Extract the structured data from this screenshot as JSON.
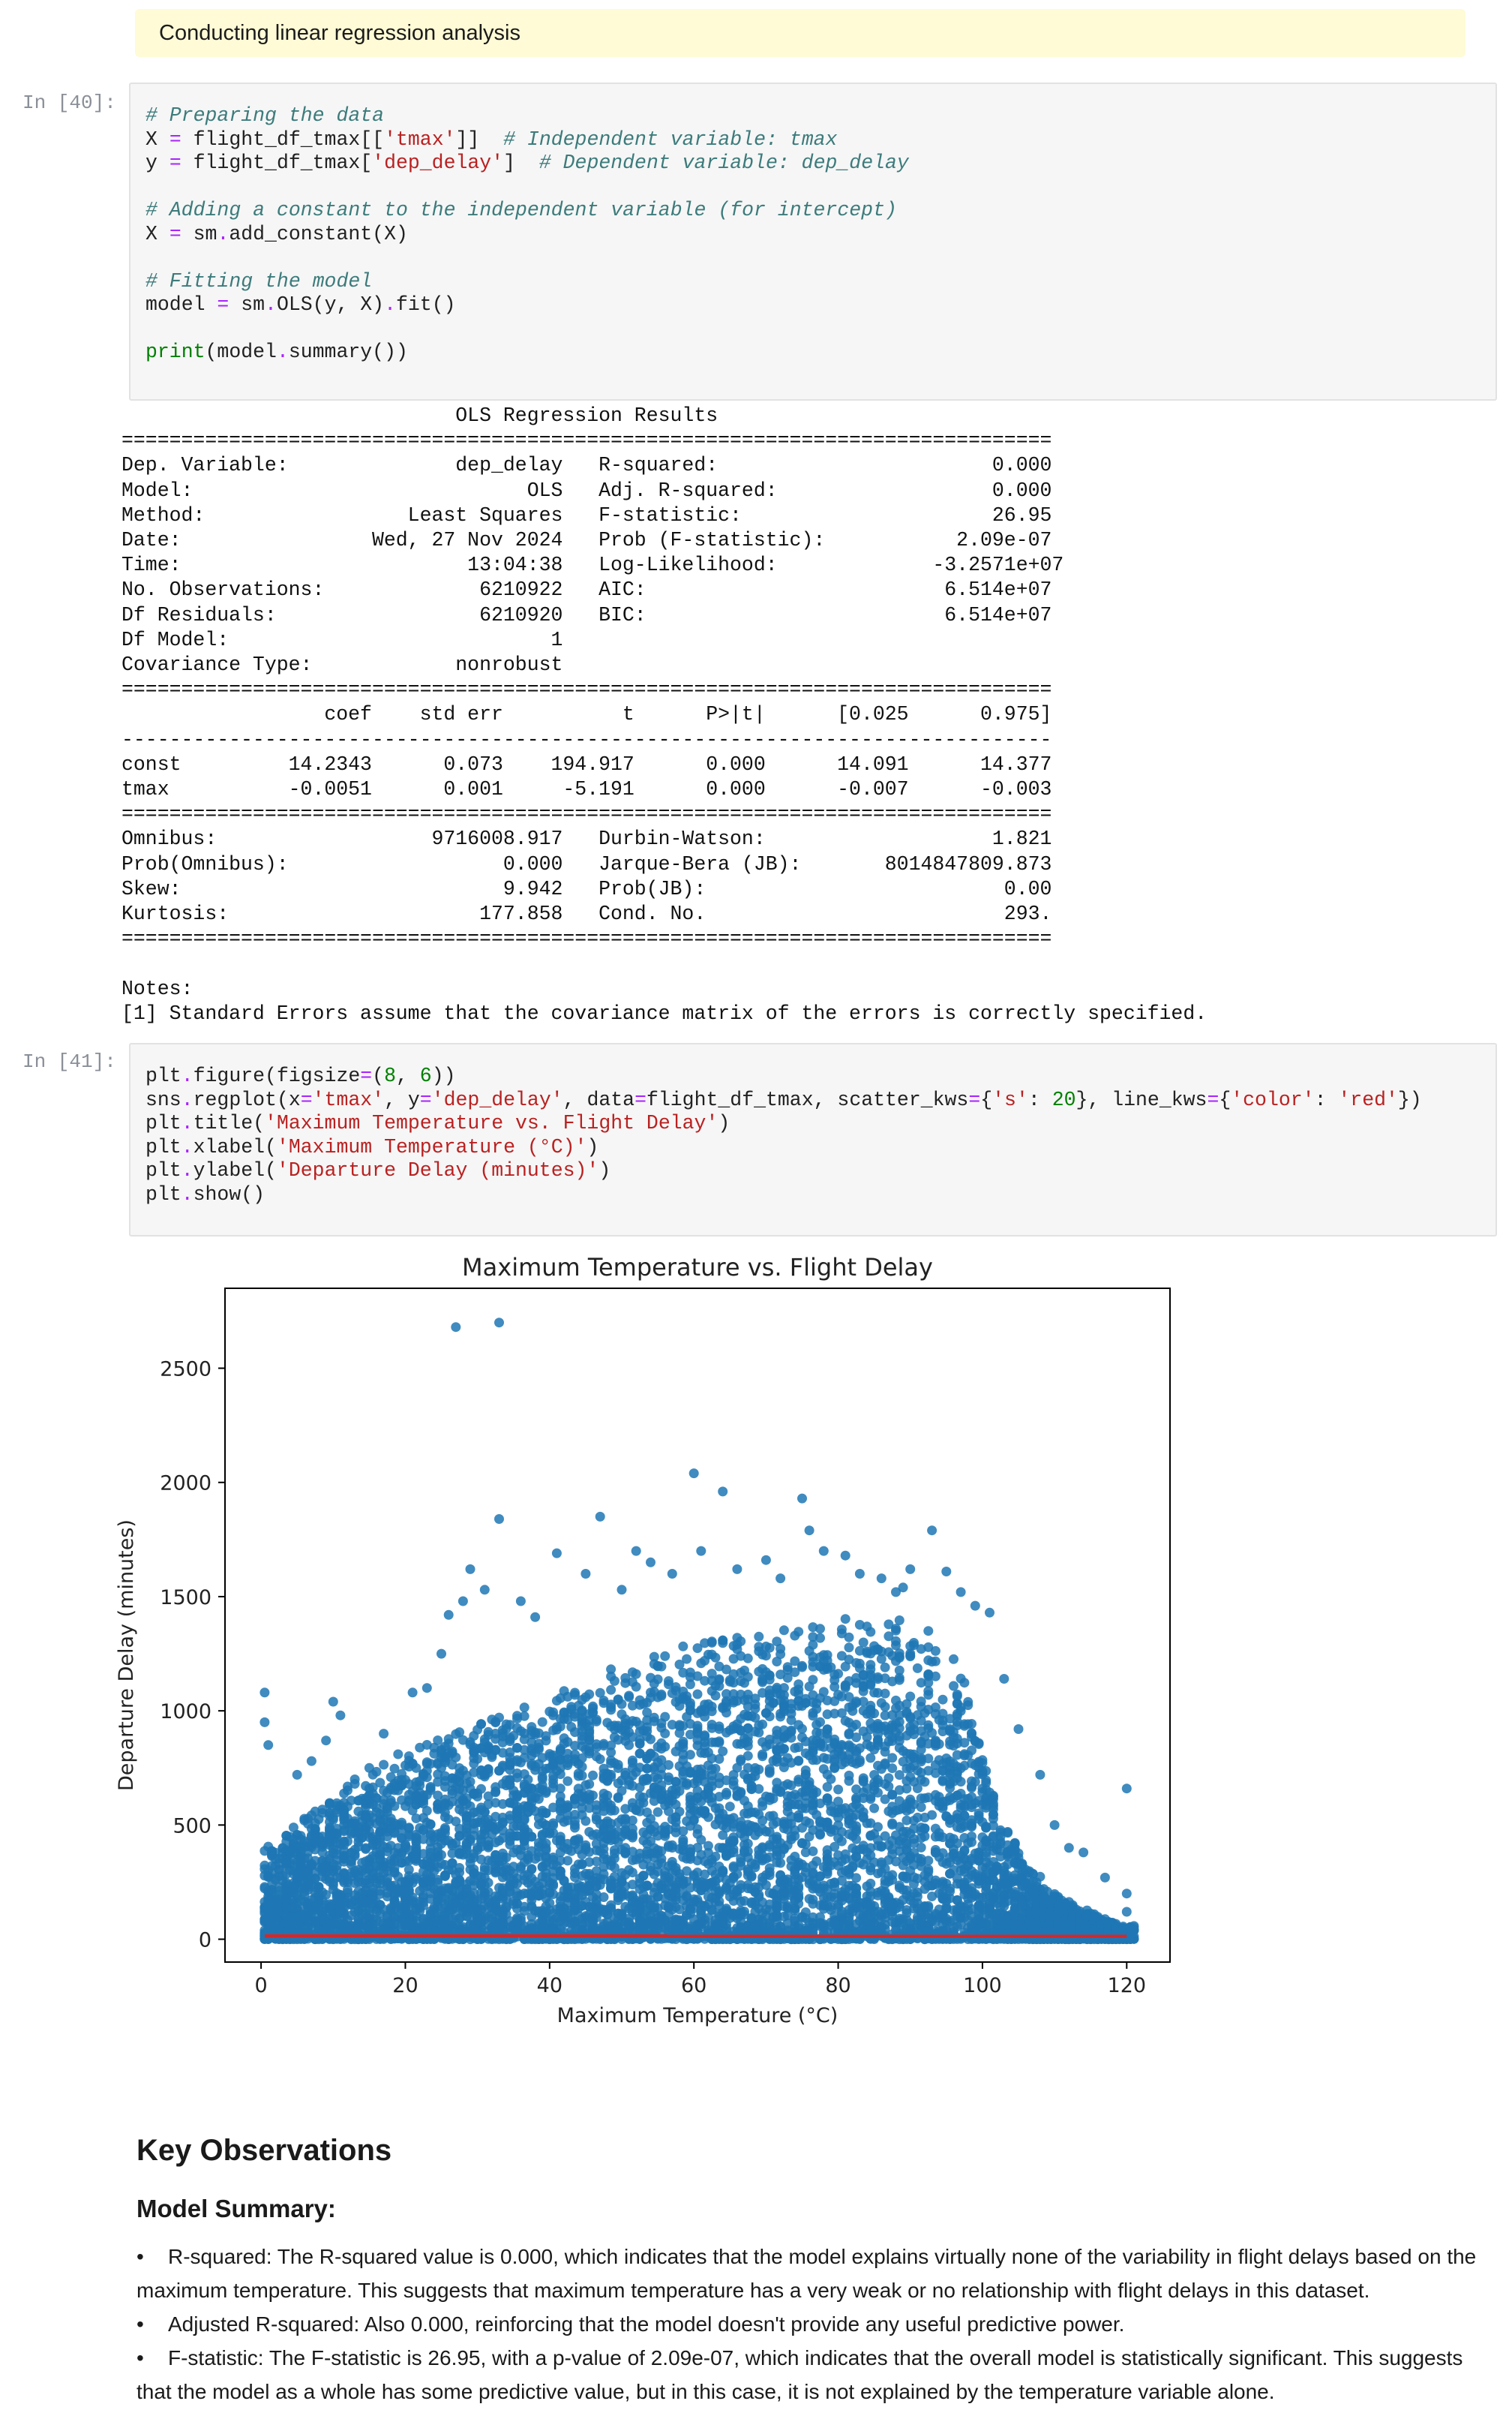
{
  "banner": {
    "text": "Conducting linear regression analysis"
  },
  "cell40": {
    "prompt": "In [40]:",
    "lines": [
      [
        {
          "t": "# Preparing the data",
          "c": "cm"
        }
      ],
      [
        {
          "t": "X "
        },
        {
          "t": "=",
          "c": "op"
        },
        {
          "t": " flight_df_tmax[["
        },
        {
          "t": "'tmax'",
          "c": "st"
        },
        {
          "t": "]]  "
        },
        {
          "t": "# Independent variable: tmax",
          "c": "cm"
        }
      ],
      [
        {
          "t": "y "
        },
        {
          "t": "=",
          "c": "op"
        },
        {
          "t": " flight_df_tmax["
        },
        {
          "t": "'dep_delay'",
          "c": "st"
        },
        {
          "t": "]  "
        },
        {
          "t": "# Dependent variable: dep_delay",
          "c": "cm"
        }
      ],
      [
        {
          "t": ""
        }
      ],
      [
        {
          "t": "# Adding a constant to the independent variable (for intercept)",
          "c": "cm"
        }
      ],
      [
        {
          "t": "X "
        },
        {
          "t": "=",
          "c": "op"
        },
        {
          "t": " sm"
        },
        {
          "t": ".",
          "c": "op"
        },
        {
          "t": "add_constant(X)"
        }
      ],
      [
        {
          "t": ""
        }
      ],
      [
        {
          "t": "# Fitting the model",
          "c": "cm"
        }
      ],
      [
        {
          "t": "model "
        },
        {
          "t": "=",
          "c": "op"
        },
        {
          "t": " sm"
        },
        {
          "t": ".",
          "c": "op"
        },
        {
          "t": "OLS(y, X)"
        },
        {
          "t": ".",
          "c": "op"
        },
        {
          "t": "fit()"
        }
      ],
      [
        {
          "t": ""
        }
      ],
      [
        {
          "t": "print",
          "c": "nm"
        },
        {
          "t": "(model"
        },
        {
          "t": ".",
          "c": "op"
        },
        {
          "t": "summary())"
        }
      ]
    ]
  },
  "ols_output": "                            OLS Regression Results                            \n==============================================================================\nDep. Variable:              dep_delay   R-squared:                       0.000\nModel:                            OLS   Adj. R-squared:                  0.000\nMethod:                 Least Squares   F-statistic:                     26.95\nDate:                Wed, 27 Nov 2024   Prob (F-statistic):           2.09e-07\nTime:                        13:04:38   Log-Likelihood:             -3.2571e+07\nNo. Observations:             6210922   AIC:                         6.514e+07\nDf Residuals:                 6210920   BIC:                         6.514e+07\nDf Model:                           1                                         \nCovariance Type:            nonrobust                                         \n==============================================================================\n                 coef    std err          t      P>|t|      [0.025      0.975]\n------------------------------------------------------------------------------\nconst         14.2343      0.073    194.917      0.000      14.091      14.377\ntmax          -0.0051      0.001     -5.191      0.000      -0.007      -0.003\n==============================================================================\nOmnibus:                  9716008.917   Durbin-Watson:                   1.821\nProb(Omnibus):                  0.000   Jarque-Bera (JB):       8014847809.873\nSkew:                           9.942   Prob(JB):                         0.00\nKurtosis:                     177.858   Cond. No.                         293.\n==============================================================================\n\nNotes:\n[1] Standard Errors assume that the covariance matrix of the errors is correctly specified.",
  "cell41": {
    "prompt": "In [41]:",
    "lines": [
      [
        {
          "t": "plt"
        },
        {
          "t": ".",
          "c": "op"
        },
        {
          "t": "figure(figsize"
        },
        {
          "t": "=",
          "c": "op"
        },
        {
          "t": "("
        },
        {
          "t": "8",
          "c": "nm"
        },
        {
          "t": ", "
        },
        {
          "t": "6",
          "c": "nm"
        },
        {
          "t": "))"
        }
      ],
      [
        {
          "t": "sns"
        },
        {
          "t": ".",
          "c": "op"
        },
        {
          "t": "regplot(x"
        },
        {
          "t": "=",
          "c": "op"
        },
        {
          "t": "'tmax'",
          "c": "st"
        },
        {
          "t": ", y"
        },
        {
          "t": "=",
          "c": "op"
        },
        {
          "t": "'dep_delay'",
          "c": "st"
        },
        {
          "t": ", data"
        },
        {
          "t": "=",
          "c": "op"
        },
        {
          "t": "flight_df_tmax, scatter_kws"
        },
        {
          "t": "=",
          "c": "op"
        },
        {
          "t": "{"
        },
        {
          "t": "'s'",
          "c": "st"
        },
        {
          "t": ": "
        },
        {
          "t": "20",
          "c": "nm"
        },
        {
          "t": "}, line_kws"
        },
        {
          "t": "=",
          "c": "op"
        },
        {
          "t": "{"
        },
        {
          "t": "'color'",
          "c": "st"
        },
        {
          "t": ": "
        },
        {
          "t": "'red'",
          "c": "st"
        },
        {
          "t": "})"
        }
      ],
      [
        {
          "t": "plt"
        },
        {
          "t": ".",
          "c": "op"
        },
        {
          "t": "title("
        },
        {
          "t": "'Maximum Temperature vs. Flight Delay'",
          "c": "st"
        },
        {
          "t": ")"
        }
      ],
      [
        {
          "t": "plt"
        },
        {
          "t": ".",
          "c": "op"
        },
        {
          "t": "xlabel("
        },
        {
          "t": "'Maximum Temperature (°C)'",
          "c": "st"
        },
        {
          "t": ")"
        }
      ],
      [
        {
          "t": "plt"
        },
        {
          "t": ".",
          "c": "op"
        },
        {
          "t": "ylabel("
        },
        {
          "t": "'Departure Delay (minutes)'",
          "c": "st"
        },
        {
          "t": ")"
        }
      ],
      [
        {
          "t": "plt"
        },
        {
          "t": ".",
          "c": "op"
        },
        {
          "t": "show()"
        }
      ]
    ]
  },
  "chart_data": {
    "type": "scatter",
    "title": "Maximum Temperature vs. Flight Delay",
    "xlabel": "Maximum Temperature (°C)",
    "ylabel": "Departure Delay (minutes)",
    "xlim": [
      -5,
      126
    ],
    "ylim": [
      -100,
      2850
    ],
    "x_ticks": [
      0,
      20,
      40,
      60,
      80,
      100,
      120
    ],
    "y_ticks": [
      0,
      500,
      1000,
      1500,
      2000,
      2500
    ],
    "point_color": "#1f77b4",
    "line_color": "#d62728",
    "envelope_upper": [
      [
        0,
        400
      ],
      [
        5,
        500
      ],
      [
        10,
        650
      ],
      [
        15,
        750
      ],
      [
        20,
        800
      ],
      [
        25,
        900
      ],
      [
        30,
        950
      ],
      [
        35,
        1000
      ],
      [
        40,
        1050
      ],
      [
        45,
        1150
      ],
      [
        50,
        1200
      ],
      [
        55,
        1250
      ],
      [
        60,
        1300
      ],
      [
        65,
        1320
      ],
      [
        70,
        1350
      ],
      [
        75,
        1370
      ],
      [
        80,
        1400
      ],
      [
        85,
        1420
      ],
      [
        88,
        1400
      ],
      [
        92,
        1380
      ],
      [
        95,
        1300
      ],
      [
        98,
        1100
      ],
      [
        100,
        800
      ],
      [
        103,
        500
      ],
      [
        106,
        350
      ],
      [
        110,
        200
      ],
      [
        115,
        120
      ],
      [
        119,
        60
      ]
    ],
    "outliers": [
      [
        0.5,
        1080
      ],
      [
        0.5,
        950
      ],
      [
        1,
        850
      ],
      [
        3,
        400
      ],
      [
        5,
        720
      ],
      [
        7,
        780
      ],
      [
        9,
        870
      ],
      [
        10,
        1040
      ],
      [
        11,
        980
      ],
      [
        13,
        700
      ],
      [
        15,
        750
      ],
      [
        17,
        900
      ],
      [
        19,
        810
      ],
      [
        21,
        1080
      ],
      [
        23,
        1100
      ],
      [
        25,
        1250
      ],
      [
        26,
        1420
      ],
      [
        27,
        2680
      ],
      [
        28,
        1480
      ],
      [
        29,
        1620
      ],
      [
        31,
        1530
      ],
      [
        33,
        2700
      ],
      [
        33,
        1840
      ],
      [
        36,
        1480
      ],
      [
        38,
        1410
      ],
      [
        41,
        1690
      ],
      [
        45,
        1600
      ],
      [
        47,
        1850
      ],
      [
        50,
        1530
      ],
      [
        52,
        1700
      ],
      [
        54,
        1650
      ],
      [
        57,
        1600
      ],
      [
        60,
        2040
      ],
      [
        61,
        1700
      ],
      [
        64,
        1960
      ],
      [
        66,
        1620
      ],
      [
        70,
        1660
      ],
      [
        72,
        1580
      ],
      [
        75,
        1930
      ],
      [
        76,
        1790
      ],
      [
        78,
        1700
      ],
      [
        81,
        1680
      ],
      [
        83,
        1600
      ],
      [
        86,
        1580
      ],
      [
        88,
        1520
      ],
      [
        89,
        1540
      ],
      [
        90,
        1620
      ],
      [
        93,
        1790
      ],
      [
        95,
        1610
      ],
      [
        97,
        1520
      ],
      [
        99,
        1460
      ],
      [
        101,
        1430
      ],
      [
        103,
        1140
      ],
      [
        105,
        920
      ],
      [
        108,
        720
      ],
      [
        110,
        500
      ],
      [
        112,
        400
      ],
      [
        114,
        380
      ],
      [
        117,
        270
      ],
      [
        120,
        660
      ],
      [
        120,
        200
      ],
      [
        120,
        120
      ],
      [
        121,
        40
      ]
    ],
    "regression_line": [
      [
        0.5,
        14.23
      ],
      [
        120,
        13.62
      ]
    ]
  },
  "markdown": {
    "h2": "Key Observations",
    "h3": "Model Summary:",
    "bullets": [
      "R-squared: The R-squared value is 0.000, which indicates that the model explains virtually none of the variability in flight delays based on the maximum temperature. This suggests that maximum temperature has a very weak or no relationship with flight delays in this dataset.",
      "Adjusted R-squared: Also 0.000, reinforcing that the model doesn't provide any useful predictive power.",
      "F-statistic: The F-statistic is 26.95, with a p-value of 2.09e-07, which indicates that the overall model is statistically significant. This suggests that the model as a whole has some predictive value, but in this case, it is not explained by the temperature variable alone."
    ]
  }
}
